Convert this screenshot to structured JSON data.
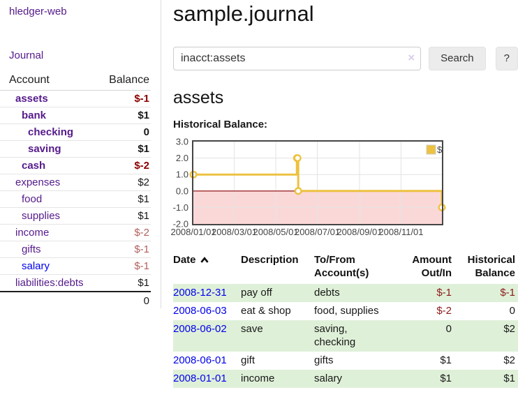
{
  "app": {
    "title": "hledger-web"
  },
  "sidebar": {
    "journal_label": "Journal",
    "accounts": {
      "headers": [
        "Account",
        "Balance"
      ],
      "rows": [
        {
          "account": "assets",
          "indent": 0,
          "strong": true,
          "link_style": "purple",
          "balance": "$-1",
          "status": "negative"
        },
        {
          "account": "bank",
          "indent": 1,
          "strong": true,
          "link_style": "purple",
          "balance": "$1",
          "status": ""
        },
        {
          "account": "checking",
          "indent": 2,
          "strong": true,
          "link_style": "purple",
          "balance": "0",
          "status": ""
        },
        {
          "account": "saving",
          "indent": 2,
          "strong": true,
          "link_style": "purple",
          "balance": "$1",
          "status": ""
        },
        {
          "account": "cash",
          "indent": 1,
          "strong": true,
          "link_style": "purple",
          "balance": "$-2",
          "status": "negative"
        },
        {
          "account": "expenses",
          "indent": 0,
          "strong": false,
          "link_style": "purple",
          "balance": "$2",
          "status": ""
        },
        {
          "account": "food",
          "indent": 1,
          "strong": false,
          "link_style": "purple",
          "balance": "$1",
          "status": ""
        },
        {
          "account": "supplies",
          "indent": 1,
          "strong": false,
          "link_style": "purple",
          "balance": "$1",
          "status": ""
        },
        {
          "account": "income",
          "indent": 0,
          "strong": false,
          "link_style": "purple",
          "balance": "$-2",
          "status": "negative-soft"
        },
        {
          "account": "gifts",
          "indent": 1,
          "strong": false,
          "link_style": "purple",
          "balance": "$-1",
          "status": "negative-soft"
        },
        {
          "account": "salary",
          "indent": 1,
          "strong": false,
          "link_style": "blue",
          "balance": "$-1",
          "status": "negative-soft"
        },
        {
          "account": "liabilities:debts",
          "indent": 0,
          "strong": false,
          "link_style": "purple",
          "balance": "$1",
          "status": ""
        }
      ],
      "total": "0"
    }
  },
  "main": {
    "title": "sample.journal",
    "search": {
      "value": "inacct:assets",
      "clear_icon": "×",
      "button_label": "Search",
      "help_label": "?"
    },
    "account_heading": "assets",
    "chart_label": "Historical Balance:"
  },
  "chart_data": {
    "type": "line",
    "title": "Historical Balance",
    "style": "steps-post",
    "series": [
      {
        "name": "$",
        "color": "#EDC240",
        "points": [
          {
            "date": "2008-01-01",
            "value": 1
          },
          {
            "date": "2008-06-01",
            "value": 2
          },
          {
            "date": "2008-06-02",
            "value": 2
          },
          {
            "date": "2008-06-03",
            "value": 0
          },
          {
            "date": "2008-12-31",
            "value": -1
          }
        ]
      }
    ],
    "xlim": [
      "2008-01-01",
      "2008-12-31"
    ],
    "ylim": [
      -2,
      3
    ],
    "y_ticks": [
      {
        "value": 3,
        "label": "3.0"
      },
      {
        "value": 2,
        "label": "2.0"
      },
      {
        "value": 1,
        "label": "1.0"
      },
      {
        "value": 0,
        "label": "0.0"
      },
      {
        "value": -1,
        "label": "-1.0"
      },
      {
        "value": -2,
        "label": "-2.0"
      }
    ],
    "x_ticks": [
      {
        "date": "2008-01-01",
        "label": "2008/01/01"
      },
      {
        "date": "2008-03-01",
        "label": "2008/03/01"
      },
      {
        "date": "2008-05-01",
        "label": "2008/05/01"
      },
      {
        "date": "2008-07-01",
        "label": "2008/07/01"
      },
      {
        "date": "2008-09-01",
        "label": "2008/09/01"
      },
      {
        "date": "2008-11-01",
        "label": "2008/11/01"
      }
    ],
    "legend": {
      "position": "top-right",
      "label": "$"
    },
    "grid": true
  },
  "register": {
    "headers": [
      "Date",
      "Description",
      "To/From\nAccount(s)",
      "Amount\nOut/In",
      "Historical\nBalance"
    ],
    "sort": "date-ascending",
    "rows": [
      {
        "date": "2008-12-31",
        "description": "pay off",
        "accounts": "debts",
        "amount": "$-1",
        "amount_status": "negative",
        "balance": "$-1",
        "balance_status": "negative"
      },
      {
        "date": "2008-06-03",
        "description": "eat & shop",
        "accounts": "food, supplies",
        "amount": "$-2",
        "amount_status": "negative",
        "balance": "0",
        "balance_status": ""
      },
      {
        "date": "2008-06-02",
        "description": "save",
        "accounts": "saving,\nchecking",
        "amount": "0",
        "amount_status": "",
        "balance": "$2",
        "balance_status": ""
      },
      {
        "date": "2008-06-01",
        "description": "gift",
        "accounts": "gifts",
        "amount": "$1",
        "amount_status": "",
        "balance": "$2",
        "balance_status": ""
      },
      {
        "date": "2008-01-01",
        "description": "income",
        "accounts": "salary",
        "amount": "$1",
        "amount_status": "",
        "balance": "$1",
        "balance_status": ""
      }
    ]
  },
  "colors": {
    "link_purple": "#551a8b",
    "link_blue": "#0000ee",
    "negative": "#8b1a1a",
    "negative_soft": "#b3605f",
    "negative_strong": "#8b0000",
    "row_stripe_green": "#dff0d8",
    "chart_series_gold": "#EDC240",
    "chart_negative_region_pink": "#fbd8d8",
    "chart_zero_line_red": "#8b0000",
    "chart_border_gray": "#454545"
  }
}
